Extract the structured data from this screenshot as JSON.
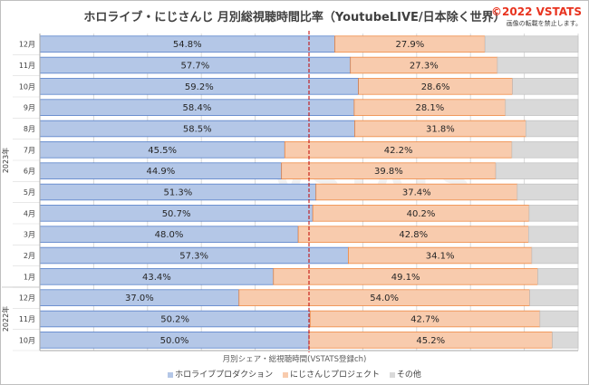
{
  "title": "ホロライブ・にじさんじ 月別総視聴時間比率（YoutubeLIVE/日本除く世界）",
  "copyright": "©2022 VSTATS",
  "notice": "画像の転載を禁止します。",
  "watermark": "VSTATS",
  "xlabel": "月別シェア・総視聴時間(VSTATS登録ch)",
  "colors": {
    "hololive": "#b4c7e7",
    "nijisanji": "#f8cbad",
    "other": "#d9d9d9"
  },
  "chart_data": {
    "type": "bar",
    "orientation": "horizontal",
    "stacked": "100%",
    "year_labels": [
      "2023年",
      "2022年"
    ],
    "categories": [
      "12月",
      "11月",
      "10月",
      "9月",
      "8月",
      "7月",
      "6月",
      "5月",
      "4月",
      "3月",
      "2月",
      "1月",
      "12月",
      "11月",
      "10月"
    ],
    "series": [
      {
        "name": "ホロライブプロダクション",
        "values": [
          54.8,
          57.7,
          59.2,
          58.4,
          58.5,
          45.5,
          44.9,
          51.3,
          50.7,
          48.0,
          57.3,
          43.4,
          37.0,
          50.2,
          50.0
        ]
      },
      {
        "name": "にじさんじプロジェクト",
        "values": [
          27.9,
          27.3,
          28.6,
          28.1,
          31.8,
          42.2,
          39.8,
          37.4,
          40.2,
          42.8,
          34.1,
          49.1,
          54.0,
          42.7,
          45.2
        ]
      },
      {
        "name": "その他",
        "values": [
          17.3,
          15.0,
          12.2,
          13.5,
          9.7,
          12.3,
          15.3,
          11.3,
          9.1,
          9.2,
          8.6,
          7.5,
          9.0,
          7.1,
          4.8
        ]
      }
    ],
    "data_labels": {
      "hololive": [
        "54.8%",
        "57.7%",
        "59.2%",
        "58.4%",
        "58.5%",
        "45.5%",
        "44.9%",
        "51.3%",
        "50.7%",
        "48.0%",
        "57.3%",
        "43.4%",
        "37.0%",
        "50.2%",
        "50.0%"
      ],
      "nijisanji": [
        "27.9%",
        "27.3%",
        "28.6%",
        "28.1%",
        "31.8%",
        "42.2%",
        "39.8%",
        "37.4%",
        "40.2%",
        "42.8%",
        "34.1%",
        "49.1%",
        "54.0%",
        "42.7%",
        "45.2%"
      ]
    },
    "xlim": [
      0,
      100
    ],
    "reference_line": 50,
    "legend_position": "bottom",
    "grid": true
  }
}
